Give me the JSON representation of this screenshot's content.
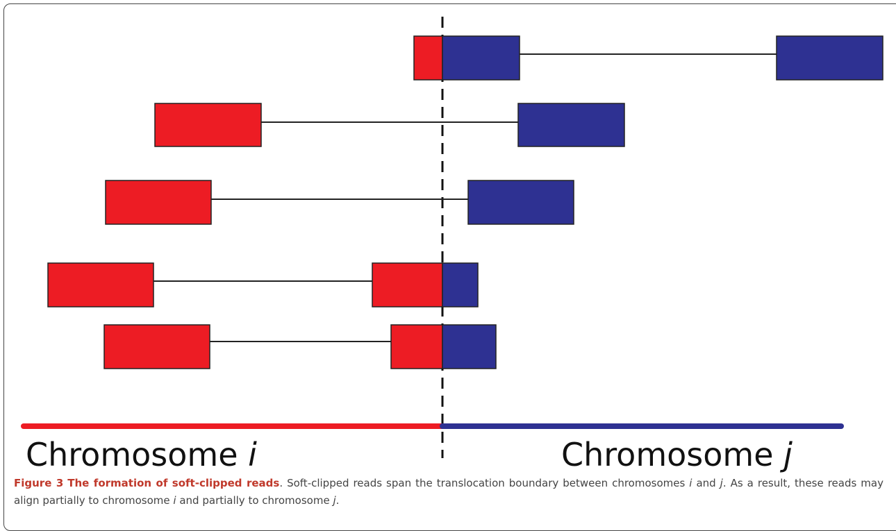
{
  "figure": {
    "label": "Figure 3",
    "title": "The formation of soft-clipped reads",
    "caption_parts": [
      "Soft-clipped reads span the translocation boundary between chromosomes ",
      "i",
      " and ",
      "j",
      ". As a result, these reads may align partially to chromosome ",
      "i",
      " and partially to chromosome ",
      "j",
      "."
    ]
  },
  "diagram": {
    "chromosome_left": {
      "prefix": "Chromosome ",
      "name": "i"
    },
    "chromosome_right": {
      "prefix": "Chromosome ",
      "name": "j"
    },
    "colors": {
      "chromosome_i": "#ed1c24",
      "chromosome_j": "#2e3192",
      "outline": "#222222",
      "connector": "#222222",
      "boundary": "#111111"
    },
    "read_pairs": [
      {
        "kind": "split-left-read",
        "left_segment": [
          "i",
          "j"
        ],
        "right_segment": [
          "j"
        ]
      },
      {
        "kind": "spanning-pair",
        "left_segment": [
          "i"
        ],
        "right_segment": [
          "j"
        ]
      },
      {
        "kind": "spanning-pair",
        "left_segment": [
          "i"
        ],
        "right_segment": [
          "j"
        ]
      },
      {
        "kind": "split-right-read",
        "left_segment": [
          "i"
        ],
        "right_segment": [
          "i",
          "j"
        ]
      },
      {
        "kind": "split-right-read",
        "left_segment": [
          "i"
        ],
        "right_segment": [
          "i",
          "j"
        ]
      }
    ]
  }
}
